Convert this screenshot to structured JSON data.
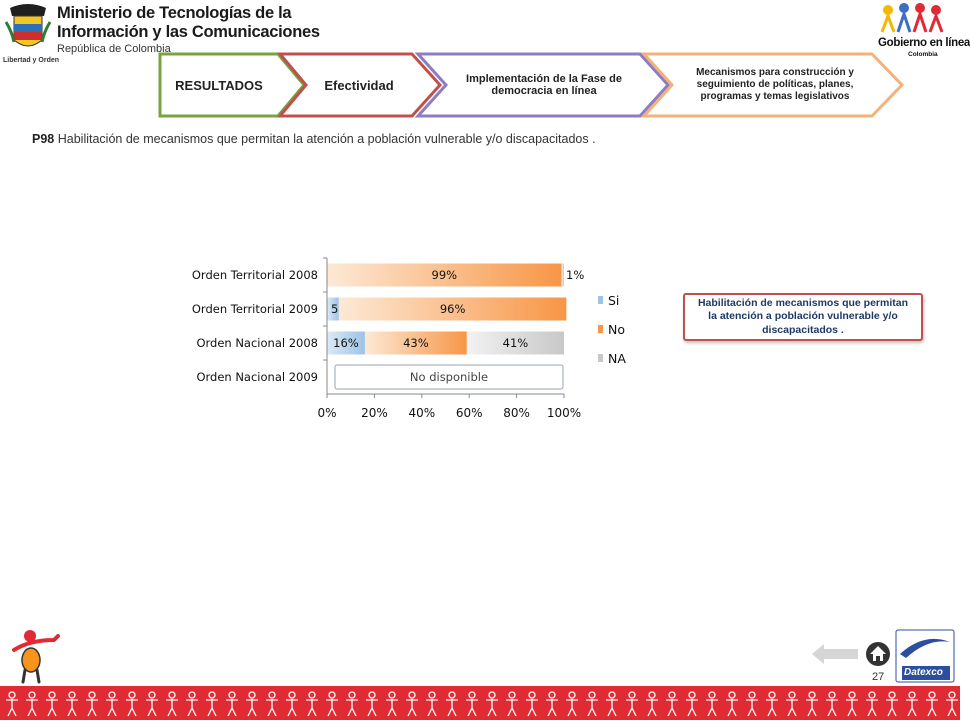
{
  "header": {
    "ministry_line1": "Ministerio de Tecnologías de la",
    "ministry_line2": "Información y las Comunicaciones",
    "ministry_line3": "República de Colombia",
    "crest_motto": "Libertad y Orden",
    "gel_logo_line1": "Gobierno en línea",
    "gel_logo_line2": "Colombia"
  },
  "nav": {
    "step1": "RESULTADOS",
    "step2": "Efectividad",
    "step3": "Implementación de la Fase de democracia en línea",
    "step4": "Mecanismos para construcción y seguimiento de políticas, planes, programas y temas legislativos"
  },
  "question": {
    "code": "P98",
    "text": "Habilitación de mecanismos que permitan la atención a población vulnerable y/o discapacitados ."
  },
  "callout": "Habilitación de mecanismos que permitan la atención a población vulnerable y/o discapacitados .",
  "chart_data": {
    "type": "bar",
    "orientation": "horizontal",
    "stacked": true,
    "categories": [
      "Orden Territorial 2008",
      "Orden Territorial 2009",
      "Orden Nacional 2008",
      "Orden Nacional 2009"
    ],
    "series": [
      {
        "name": "Si",
        "values": [
          0,
          5,
          16,
          null
        ],
        "labels": [
          "",
          "5%",
          "16%",
          ""
        ],
        "color": "#9dc3e6"
      },
      {
        "name": "No",
        "values": [
          99,
          96,
          43,
          null
        ],
        "labels": [
          "99%",
          "96%",
          "43%",
          ""
        ],
        "color": "#f79646"
      },
      {
        "name": "NA",
        "values": [
          1,
          0,
          41,
          null
        ],
        "labels": [
          "1%",
          "",
          "41%",
          ""
        ],
        "color": "#c8c8c8"
      }
    ],
    "xlim": [
      0,
      100
    ],
    "xticks": [
      "0%",
      "20%",
      "40%",
      "60%",
      "80%",
      "100%"
    ],
    "annotation": "No disponible",
    "legend_position": "right"
  },
  "footer": {
    "page_number": "27",
    "brand": "Datexco"
  },
  "colors": {
    "accent_red": "#e02a34",
    "chevron_green": "#77a340",
    "chevron_red": "#c0504d",
    "chevron_purple": "#8e7cc3",
    "chevron_orange": "#f3b27a"
  }
}
